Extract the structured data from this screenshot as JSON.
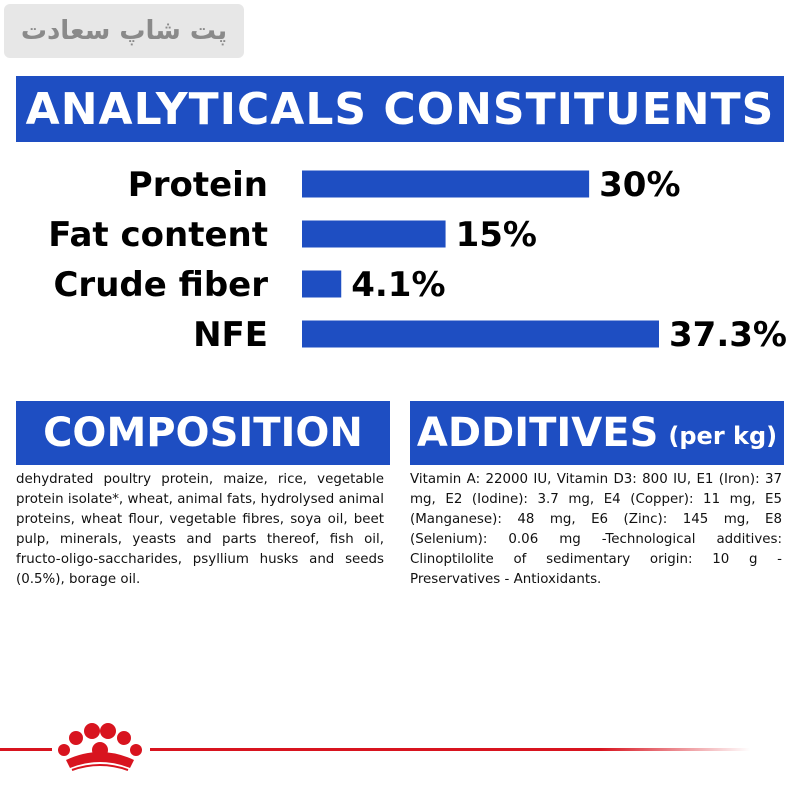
{
  "watermark": {
    "text": "پت شاپ سعادت"
  },
  "analytics": {
    "title": "ANALYTICALS CONSTITUENTS"
  },
  "chart_data": {
    "type": "bar",
    "orientation": "horizontal",
    "categories": [
      "Protein",
      "Fat content",
      "Crude fiber",
      "NFE"
    ],
    "values": [
      30,
      15,
      4.1,
      37.3
    ],
    "value_labels": [
      "30%",
      "15%",
      "4.1%",
      "37.3%"
    ],
    "unit": "%",
    "bar_color": "#1e4ec2",
    "title": "",
    "xlabel": "",
    "ylabel": "",
    "grid": false
  },
  "composition": {
    "title": "COMPOSITION",
    "text": "dehydrated poultry protein, maize, rice, vegetable protein isolate*, wheat, animal fats, hydrolysed animal proteins, wheat flour, vegetable fibres, soya oil, beet pulp, minerals, yeasts and parts thereof, fish oil, fructo-oligo-saccharides, psyllium husks and seeds (0.5%), borage oil."
  },
  "additives": {
    "title": "ADDITIVES",
    "suffix": "(per kg)",
    "text": "Vitamin A: 22000 IU, Vitamin D3: 800 IU, E1 (Iron): 37 mg, E2 (Iodine): 3.7 mg, E4 (Copper): 11 mg, E5 (Manganese): 48 mg, E6 (Zinc): 145 mg, E8 (Selenium): 0.06 mg -Technological additives: Clinoptilolite of sedimentary origin: 10 g - Preservatives - Antioxidants."
  },
  "colors": {
    "brand_blue": "#1e4ec2",
    "brand_red": "#d8141f"
  },
  "footer": {
    "logo_icon": "royal-canin-crown-icon"
  }
}
